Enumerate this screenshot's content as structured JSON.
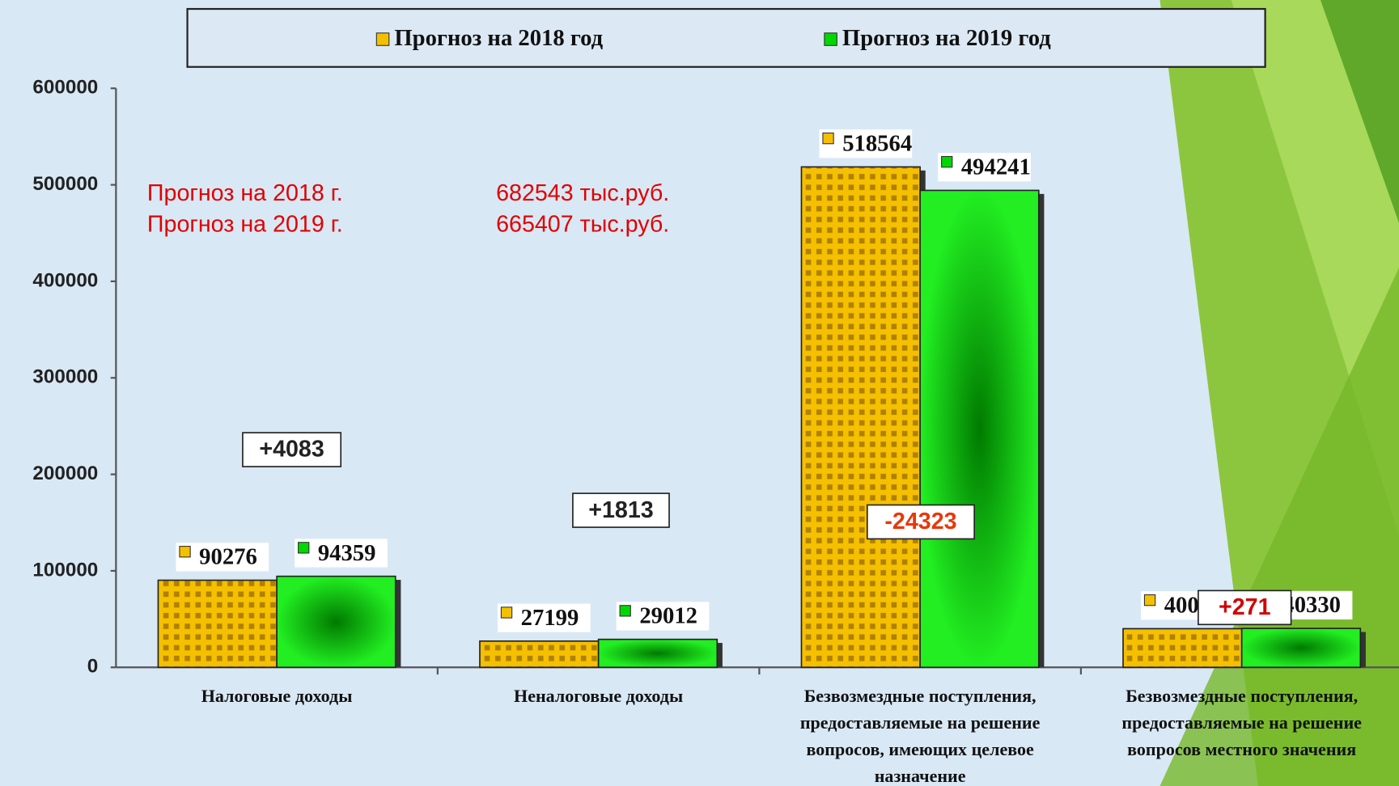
{
  "chart_data": {
    "type": "bar",
    "categories": [
      "Налоговые доходы",
      "Неналоговые доходы",
      "Безвозмездные поступления, предоставляемые на решение вопросов, имеющих целевое назначение",
      "Безвозмездные поступления, предоставляемые на решение вопросов местного значения"
    ],
    "series": [
      {
        "name": "Прогноз на 2018 год",
        "color": "#f5c000",
        "values": [
          90276,
          27199,
          518564,
          40059
        ]
      },
      {
        "name": "Прогноз на 2019 год",
        "color": "#00d800",
        "values": [
          94359,
          29012,
          494241,
          40330
        ]
      }
    ],
    "ylim": [
      0,
      600000
    ],
    "yticks": [
      0,
      100000,
      200000,
      300000,
      400000,
      500000,
      600000
    ],
    "notes": [
      "Прогноз на 2018 г.",
      "682543 тыс.руб.",
      "Прогноз на 2019 г.",
      "665407 тыс.руб."
    ],
    "annotations": [
      "+4083",
      "+1813",
      "-24323",
      "+271"
    ]
  }
}
